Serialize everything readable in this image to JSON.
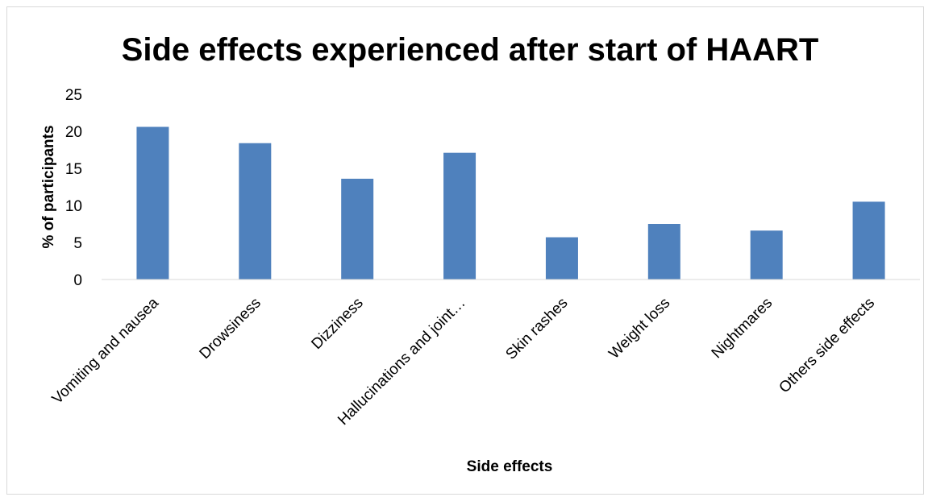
{
  "chart_data": {
    "type": "bar",
    "title": "Side effects experienced after start of HAART",
    "xlabel": "Side effects",
    "ylabel": "% of participants",
    "categories": [
      "Vomiting and nausea",
      "Drowsiness",
      "Dizziness",
      "Hallucinations and joint…",
      "Skin rashes",
      "Weight loss",
      "Nightmares",
      "Others side effects"
    ],
    "values": [
      20.6,
      18.4,
      13.6,
      17.1,
      5.7,
      7.5,
      6.6,
      10.5
    ],
    "ylim": [
      0,
      25
    ],
    "yticks": [
      0,
      5,
      10,
      15,
      20,
      25
    ],
    "bar_color": "#4f81bd",
    "grid": false,
    "legend": "none"
  }
}
